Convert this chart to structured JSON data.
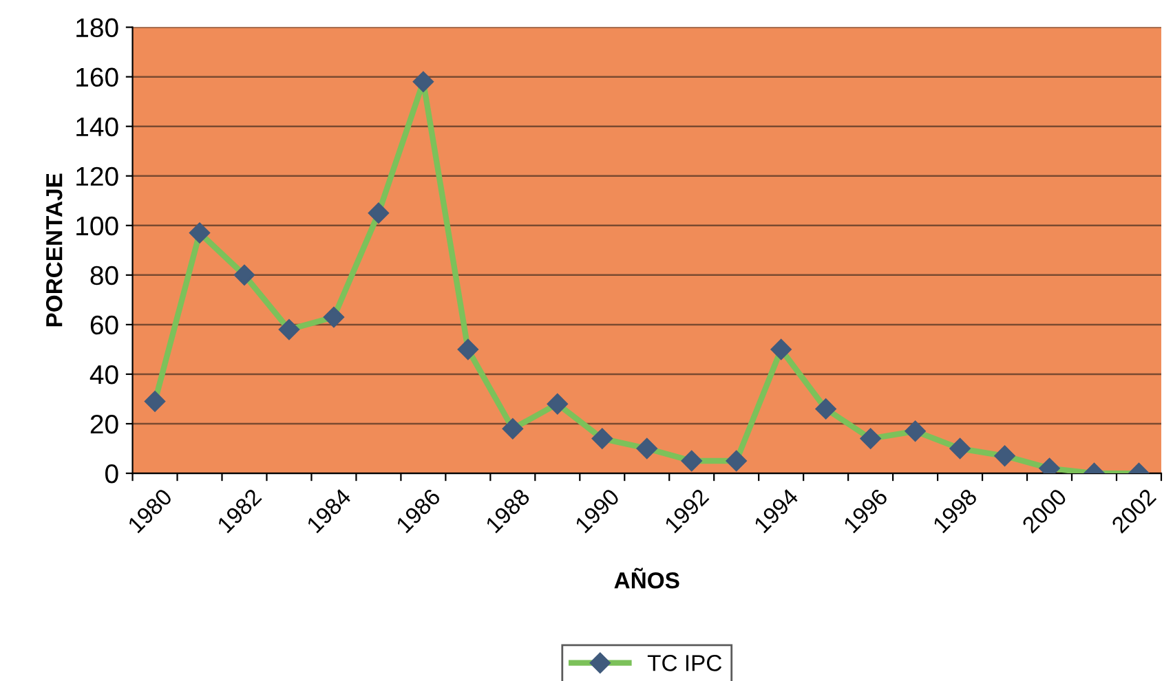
{
  "chart_data": {
    "type": "line",
    "xlabel": "AÑOS",
    "ylabel": "PORCENTAJE",
    "categories": [
      "1980",
      null,
      "1982",
      null,
      "1984",
      null,
      "1986",
      null,
      "1988",
      null,
      "1990",
      null,
      "1992",
      null,
      "1994",
      null,
      "1996",
      null,
      "1998",
      null,
      "2000",
      null,
      "2002"
    ],
    "series": [
      {
        "name": "TC IPC",
        "color": "#7cc15a",
        "values": [
          29,
          97,
          80,
          58,
          63,
          105,
          158,
          50,
          18,
          28,
          14,
          10,
          5,
          5,
          50,
          26,
          14,
          17,
          10,
          7,
          2,
          0,
          0
        ]
      }
    ],
    "ylim": [
      0,
      180
    ],
    "yticks": [
      0,
      20,
      40,
      60,
      80,
      100,
      120,
      140,
      160,
      180
    ],
    "grid": "y",
    "legend": "bottom",
    "marker": "diamond",
    "line_style": "solid"
  }
}
